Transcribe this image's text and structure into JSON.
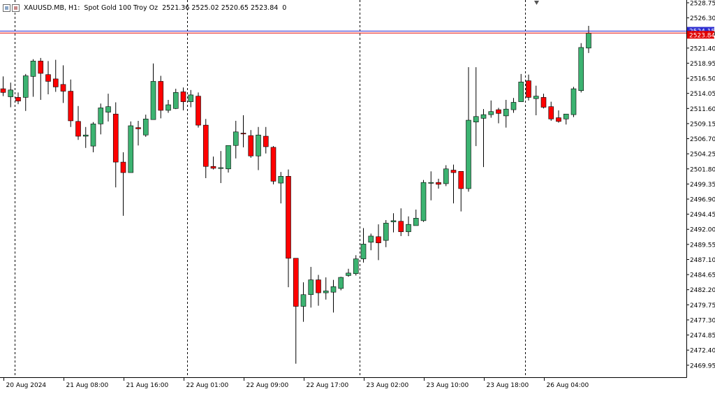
{
  "header": {
    "symbol": "XAUUSD.MB, H1:",
    "description": "Spot Gold 100 Troy Oz",
    "ohlc": "2521.36 2525.02 2520.65 2523.84",
    "volume": "0",
    "icon": "chart-window-icon"
  },
  "chart_data": {
    "type": "candlestick",
    "title": "",
    "xlabel": "",
    "ylabel": "",
    "ylim": [
      2468.0,
      2529.2
    ],
    "grid": false,
    "colors": {
      "up": "#3cb371",
      "down": "#ff0000",
      "wick": "#000000",
      "ask_line": "#2f2fd0",
      "bid_line": "#e00000"
    },
    "y_ticks": [
      "2528.75",
      "2526.30",
      "2523.84",
      "2521.40",
      "2518.95",
      "2516.50",
      "2514.05",
      "2511.60",
      "2509.15",
      "2506.70",
      "2504.25",
      "2501.80",
      "2499.35",
      "2496.90",
      "2494.45",
      "2492.00",
      "2489.55",
      "2487.10",
      "2484.65",
      "2482.20",
      "2479.75",
      "2477.30",
      "2474.85",
      "2472.40",
      "2469.95"
    ],
    "x_labels": [
      {
        "label": "20 Aug 2024",
        "index": 0
      },
      {
        "label": "21 Aug 08:00",
        "index": 8
      },
      {
        "label": "21 Aug 16:00",
        "index": 16
      },
      {
        "label": "22 Aug 01:00",
        "index": 24
      },
      {
        "label": "22 Aug 09:00",
        "index": 32
      },
      {
        "label": "22 Aug 17:00",
        "index": 40
      },
      {
        "label": "23 Aug 02:00",
        "index": 48
      },
      {
        "label": "23 Aug 10:00",
        "index": 56
      },
      {
        "label": "23 Aug 18:00",
        "index": 64
      },
      {
        "label": "26 Aug 04:00",
        "index": 72
      }
    ],
    "session_separators": [
      1,
      24,
      47,
      69
    ],
    "ask_price": "2524.15",
    "bid_price": "2523.84",
    "candles": [
      {
        "o": 2514.8,
        "h": 2516.8,
        "l": 2513.6,
        "c": 2514.2
      },
      {
        "o": 2513.5,
        "h": 2515.8,
        "l": 2511.8,
        "c": 2514.6
      },
      {
        "o": 2513.4,
        "h": 2514.2,
        "l": 2512.3,
        "c": 2512.8
      },
      {
        "o": 2513.4,
        "h": 2517.2,
        "l": 2511.2,
        "c": 2516.9
      },
      {
        "o": 2516.8,
        "h": 2519.6,
        "l": 2513.5,
        "c": 2519.3
      },
      {
        "o": 2519.3,
        "h": 2519.8,
        "l": 2513.0,
        "c": 2517.3
      },
      {
        "o": 2517.1,
        "h": 2519.3,
        "l": 2513.9,
        "c": 2516.0
      },
      {
        "o": 2516.4,
        "h": 2519.5,
        "l": 2514.3,
        "c": 2515.1
      },
      {
        "o": 2515.5,
        "h": 2518.6,
        "l": 2512.5,
        "c": 2514.4
      },
      {
        "o": 2514.4,
        "h": 2516.3,
        "l": 2508.6,
        "c": 2509.6
      },
      {
        "o": 2509.5,
        "h": 2512.0,
        "l": 2506.5,
        "c": 2507.1
      },
      {
        "o": 2507.1,
        "h": 2508.6,
        "l": 2505.2,
        "c": 2507.3
      },
      {
        "o": 2505.5,
        "h": 2509.4,
        "l": 2504.5,
        "c": 2509.1
      },
      {
        "o": 2509.1,
        "h": 2512.4,
        "l": 2507.4,
        "c": 2511.7
      },
      {
        "o": 2511.0,
        "h": 2514.0,
        "l": 2509.5,
        "c": 2511.9
      },
      {
        "o": 2510.7,
        "h": 2512.6,
        "l": 2498.8,
        "c": 2502.9
      },
      {
        "o": 2502.9,
        "h": 2504.5,
        "l": 2494.2,
        "c": 2501.2
      },
      {
        "o": 2501.2,
        "h": 2509.5,
        "l": 2501.2,
        "c": 2508.8
      },
      {
        "o": 2508.5,
        "h": 2509.6,
        "l": 2505.6,
        "c": 2508.3
      },
      {
        "o": 2507.3,
        "h": 2510.6,
        "l": 2507.0,
        "c": 2509.9
      },
      {
        "o": 2509.8,
        "h": 2518.9,
        "l": 2509.8,
        "c": 2516.0
      },
      {
        "o": 2516.0,
        "h": 2516.9,
        "l": 2510.0,
        "c": 2511.3
      },
      {
        "o": 2511.3,
        "h": 2513.0,
        "l": 2510.9,
        "c": 2512.2
      },
      {
        "o": 2511.6,
        "h": 2514.8,
        "l": 2511.5,
        "c": 2514.2
      },
      {
        "o": 2514.3,
        "h": 2515.0,
        "l": 2511.3,
        "c": 2512.7
      },
      {
        "o": 2512.7,
        "h": 2514.6,
        "l": 2511.8,
        "c": 2513.8
      },
      {
        "o": 2513.6,
        "h": 2514.2,
        "l": 2508.5,
        "c": 2508.9
      },
      {
        "o": 2508.9,
        "h": 2509.9,
        "l": 2500.3,
        "c": 2502.2
      },
      {
        "o": 2502.2,
        "h": 2503.8,
        "l": 2501.7,
        "c": 2501.9
      },
      {
        "o": 2501.9,
        "h": 2504.7,
        "l": 2499.5,
        "c": 2502.0
      },
      {
        "o": 2501.8,
        "h": 2505.6,
        "l": 2501.2,
        "c": 2505.6
      },
      {
        "o": 2505.6,
        "h": 2509.6,
        "l": 2503.5,
        "c": 2507.8
      },
      {
        "o": 2507.6,
        "h": 2510.5,
        "l": 2505.3,
        "c": 2507.5
      },
      {
        "o": 2507.2,
        "h": 2508.1,
        "l": 2503.6,
        "c": 2503.9
      },
      {
        "o": 2503.9,
        "h": 2508.6,
        "l": 2501.6,
        "c": 2507.3
      },
      {
        "o": 2507.1,
        "h": 2508.6,
        "l": 2504.3,
        "c": 2505.4
      },
      {
        "o": 2505.3,
        "h": 2505.5,
        "l": 2499.3,
        "c": 2499.8
      },
      {
        "o": 2499.5,
        "h": 2501.3,
        "l": 2496.2,
        "c": 2500.6
      },
      {
        "o": 2500.6,
        "h": 2501.7,
        "l": 2482.6,
        "c": 2487.3
      },
      {
        "o": 2487.3,
        "h": 2487.3,
        "l": 2470.2,
        "c": 2479.5
      },
      {
        "o": 2479.5,
        "h": 2483.4,
        "l": 2477.0,
        "c": 2481.4
      },
      {
        "o": 2481.4,
        "h": 2485.9,
        "l": 2479.3,
        "c": 2483.8
      },
      {
        "o": 2483.8,
        "h": 2484.6,
        "l": 2479.6,
        "c": 2481.7
      },
      {
        "o": 2481.7,
        "h": 2484.2,
        "l": 2480.6,
        "c": 2482.0
      },
      {
        "o": 2481.8,
        "h": 2483.8,
        "l": 2478.5,
        "c": 2482.7
      },
      {
        "o": 2482.4,
        "h": 2484.3,
        "l": 2482.1,
        "c": 2484.2
      },
      {
        "o": 2484.5,
        "h": 2485.6,
        "l": 2484.3,
        "c": 2484.9
      },
      {
        "o": 2484.8,
        "h": 2487.8,
        "l": 2484.5,
        "c": 2487.2
      },
      {
        "o": 2487.2,
        "h": 2492.2,
        "l": 2486.6,
        "c": 2489.6
      },
      {
        "o": 2489.9,
        "h": 2491.3,
        "l": 2488.6,
        "c": 2490.9
      },
      {
        "o": 2490.8,
        "h": 2492.8,
        "l": 2487.0,
        "c": 2489.8
      },
      {
        "o": 2490.2,
        "h": 2493.5,
        "l": 2489.1,
        "c": 2493.0
      },
      {
        "o": 2493.2,
        "h": 2494.6,
        "l": 2491.5,
        "c": 2493.4
      },
      {
        "o": 2493.3,
        "h": 2495.4,
        "l": 2490.9,
        "c": 2491.6
      },
      {
        "o": 2491.6,
        "h": 2494.1,
        "l": 2490.9,
        "c": 2492.8
      },
      {
        "o": 2492.6,
        "h": 2495.2,
        "l": 2492.6,
        "c": 2493.8
      },
      {
        "o": 2493.4,
        "h": 2500.0,
        "l": 2493.2,
        "c": 2499.6
      },
      {
        "o": 2499.6,
        "h": 2501.4,
        "l": 2496.7,
        "c": 2499.6
      },
      {
        "o": 2499.6,
        "h": 2500.2,
        "l": 2498.6,
        "c": 2499.3
      },
      {
        "o": 2499.4,
        "h": 2502.4,
        "l": 2499.0,
        "c": 2501.8
      },
      {
        "o": 2501.6,
        "h": 2502.5,
        "l": 2496.2,
        "c": 2501.2
      },
      {
        "o": 2501.4,
        "h": 2501.4,
        "l": 2494.9,
        "c": 2498.6
      },
      {
        "o": 2498.6,
        "h": 2518.3,
        "l": 2498.1,
        "c": 2509.7
      },
      {
        "o": 2509.4,
        "h": 2518.3,
        "l": 2505.5,
        "c": 2510.3
      },
      {
        "o": 2510.0,
        "h": 2511.5,
        "l": 2502.1,
        "c": 2510.6
      },
      {
        "o": 2510.6,
        "h": 2512.9,
        "l": 2510.1,
        "c": 2511.1
      },
      {
        "o": 2511.4,
        "h": 2511.7,
        "l": 2509.2,
        "c": 2510.8
      },
      {
        "o": 2510.4,
        "h": 2513.0,
        "l": 2508.5,
        "c": 2511.5
      },
      {
        "o": 2511.4,
        "h": 2513.3,
        "l": 2510.9,
        "c": 2512.6
      },
      {
        "o": 2512.7,
        "h": 2517.2,
        "l": 2512.7,
        "c": 2515.9
      },
      {
        "o": 2516.1,
        "h": 2517.1,
        "l": 2512.9,
        "c": 2513.4
      },
      {
        "o": 2513.2,
        "h": 2515.3,
        "l": 2510.5,
        "c": 2513.6
      },
      {
        "o": 2513.4,
        "h": 2514.0,
        "l": 2511.6,
        "c": 2511.8
      },
      {
        "o": 2511.9,
        "h": 2512.7,
        "l": 2509.6,
        "c": 2509.9
      },
      {
        "o": 2510.1,
        "h": 2511.3,
        "l": 2509.3,
        "c": 2509.5
      },
      {
        "o": 2509.9,
        "h": 2510.6,
        "l": 2509.0,
        "c": 2510.7
      },
      {
        "o": 2510.6,
        "h": 2515.1,
        "l": 2510.2,
        "c": 2514.8
      },
      {
        "o": 2514.5,
        "h": 2522.2,
        "l": 2514.2,
        "c": 2521.5
      },
      {
        "o": 2521.4,
        "h": 2525.0,
        "l": 2520.6,
        "c": 2523.8
      }
    ]
  }
}
